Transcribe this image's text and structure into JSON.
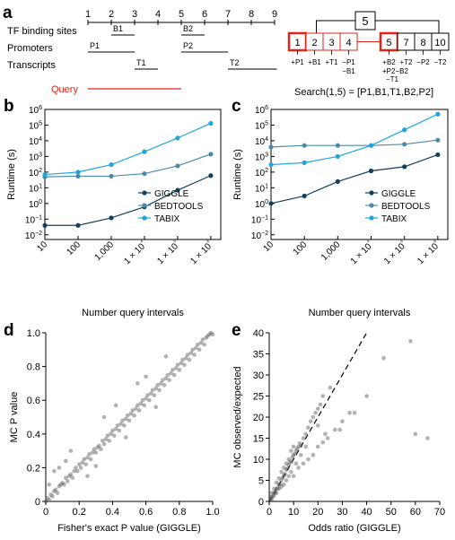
{
  "panel_a": {
    "panel_label": "a",
    "ruler": [
      "1",
      "2",
      "3",
      "4",
      "5",
      "6",
      "7",
      "8",
      "9"
    ],
    "tracks": [
      {
        "label": "TF binding sites",
        "intervals": [
          {
            "name": "B1",
            "start": 2,
            "end": 3
          },
          {
            "name": "B2",
            "start": 5,
            "end": 6
          }
        ]
      },
      {
        "label": "Promoters",
        "intervals": [
          {
            "name": "P1",
            "start": 1,
            "end": 3
          },
          {
            "name": "P2",
            "start": 5,
            "end": 7
          }
        ]
      },
      {
        "label": "Transcripts",
        "intervals": [
          {
            "name": "T1",
            "start": 3,
            "end": 4
          },
          {
            "name": "T2",
            "start": 7,
            "end": 9.1
          }
        ]
      }
    ],
    "query_label": "Query",
    "query_interval": {
      "start": 1,
      "end": 5
    },
    "index_root": "5",
    "index_left": [
      "1",
      "2",
      "3",
      "4"
    ],
    "index_right": [
      "5",
      "7",
      "8",
      "10"
    ],
    "annotations_left": [
      "+P1",
      "+B1",
      "+T1",
      "−P1"
    ],
    "annotations_left_extra": "−B1",
    "annotations_right_row1": [
      "+B2",
      "+T2",
      "−P2",
      "−T2"
    ],
    "annotations_right_row2": "+P2−B2",
    "annotations_right_row3": "−T1",
    "search_text": "Search(1,5) = [P1,B1,T1,B2,P2]",
    "colors": {
      "highlight": "#e2231a",
      "query": "#e2231a",
      "ruler": "#000000"
    }
  },
  "panel_b": {
    "panel_label": "b",
    "chart_data": {
      "type": "line",
      "ylabel": "Runtime (s)",
      "xlabel": "Number query intervals",
      "scale": "log-log",
      "x": [
        10,
        100,
        1000,
        10000,
        100000,
        1000000
      ],
      "x_tick_labels": [
        "10",
        "100",
        "1,000",
        "1 × 10⁴",
        "1 × 10⁵",
        "1 × 10⁶"
      ],
      "y_tick_labels": [
        "10⁻²",
        "10⁻¹",
        "10⁰",
        "10¹",
        "10²",
        "10³",
        "10⁴",
        "10⁵",
        "10⁶"
      ],
      "ylim": [
        0.005,
        1000000
      ],
      "legend_position": "bottom-right",
      "series": [
        {
          "name": "GIGGLE",
          "color": "#13405b",
          "values": [
            0.04,
            0.04,
            0.12,
            0.6,
            7,
            60
          ]
        },
        {
          "name": "BEDTOOLS",
          "color": "#4c8aa8",
          "values": [
            50,
            55,
            55,
            80,
            250,
            1400
          ]
        },
        {
          "name": "TABIX",
          "color": "#1fa5dc",
          "values": [
            70,
            100,
            300,
            2000,
            15000,
            130000
          ]
        }
      ]
    }
  },
  "panel_c": {
    "panel_label": "c",
    "chart_data": {
      "type": "line",
      "ylabel": "Runtime (s)",
      "xlabel": "Number query intervals",
      "scale": "log-log",
      "x": [
        10,
        100,
        1000,
        10000,
        100000,
        1000000
      ],
      "x_tick_labels": [
        "10",
        "100",
        "1,000",
        "1 × 10⁴",
        "1 × 10⁵",
        "1 × 10⁶"
      ],
      "y_tick_labels": [
        "10⁻²",
        "10⁻¹",
        "10⁰",
        "10¹",
        "10²",
        "10³",
        "10⁴",
        "10⁵",
        "10⁶"
      ],
      "ylim": [
        0.005,
        1000000
      ],
      "legend_position": "bottom-right",
      "series": [
        {
          "name": "GIGGLE",
          "color": "#13405b",
          "values": [
            1,
            3,
            25,
            120,
            220,
            1300
          ]
        },
        {
          "name": "BEDTOOLS",
          "color": "#4c8aa8",
          "values": [
            4000,
            5000,
            5000,
            5000,
            6000,
            11000
          ]
        },
        {
          "name": "TABIX",
          "color": "#1fa5dc",
          "values": [
            300,
            400,
            1000,
            5000,
            50000,
            500000
          ]
        }
      ]
    }
  },
  "panel_d": {
    "panel_label": "d",
    "chart_data": {
      "type": "scatter",
      "xlabel": "Fisher's exact P value (GIGGLE)",
      "ylabel": "MC P value",
      "xlim": [
        0,
        1
      ],
      "ylim": [
        0,
        1
      ],
      "x_ticks": [
        "0",
        "0.2",
        "0.4",
        "0.6",
        "0.8",
        "1.0"
      ],
      "y_ticks": [
        "0",
        "0.2",
        "0.4",
        "0.6",
        "0.8",
        "1.0"
      ],
      "point_color": "#555555",
      "points": [
        [
          0.0,
          0.0
        ],
        [
          0.01,
          0.02
        ],
        [
          0.02,
          0.01
        ],
        [
          0.03,
          0.04
        ],
        [
          0.04,
          0.03
        ],
        [
          0.05,
          0.06
        ],
        [
          0.06,
          0.07
        ],
        [
          0.07,
          0.05
        ],
        [
          0.08,
          0.09
        ],
        [
          0.09,
          0.1
        ],
        [
          0.1,
          0.11
        ],
        [
          0.11,
          0.1
        ],
        [
          0.12,
          0.14
        ],
        [
          0.13,
          0.12
        ],
        [
          0.14,
          0.15
        ],
        [
          0.15,
          0.16
        ],
        [
          0.16,
          0.14
        ],
        [
          0.17,
          0.18
        ],
        [
          0.18,
          0.2
        ],
        [
          0.19,
          0.18
        ],
        [
          0.2,
          0.22
        ],
        [
          0.21,
          0.2
        ],
        [
          0.22,
          0.23
        ],
        [
          0.23,
          0.25
        ],
        [
          0.24,
          0.22
        ],
        [
          0.25,
          0.26
        ],
        [
          0.26,
          0.28
        ],
        [
          0.27,
          0.25
        ],
        [
          0.28,
          0.29
        ],
        [
          0.29,
          0.31
        ],
        [
          0.3,
          0.29
        ],
        [
          0.31,
          0.32
        ],
        [
          0.32,
          0.33
        ],
        [
          0.33,
          0.31
        ],
        [
          0.34,
          0.36
        ],
        [
          0.35,
          0.34
        ],
        [
          0.36,
          0.37
        ],
        [
          0.37,
          0.39
        ],
        [
          0.38,
          0.36
        ],
        [
          0.39,
          0.4
        ],
        [
          0.4,
          0.42
        ],
        [
          0.41,
          0.39
        ],
        [
          0.42,
          0.43
        ],
        [
          0.43,
          0.45
        ],
        [
          0.44,
          0.42
        ],
        [
          0.45,
          0.46
        ],
        [
          0.46,
          0.48
        ],
        [
          0.47,
          0.45
        ],
        [
          0.48,
          0.49
        ],
        [
          0.49,
          0.51
        ],
        [
          0.5,
          0.48
        ],
        [
          0.51,
          0.52
        ],
        [
          0.52,
          0.54
        ],
        [
          0.53,
          0.51
        ],
        [
          0.54,
          0.55
        ],
        [
          0.55,
          0.57
        ],
        [
          0.56,
          0.54
        ],
        [
          0.57,
          0.58
        ],
        [
          0.58,
          0.6
        ],
        [
          0.59,
          0.57
        ],
        [
          0.6,
          0.61
        ],
        [
          0.61,
          0.63
        ],
        [
          0.62,
          0.6
        ],
        [
          0.63,
          0.64
        ],
        [
          0.64,
          0.66
        ],
        [
          0.65,
          0.63
        ],
        [
          0.66,
          0.67
        ],
        [
          0.67,
          0.69
        ],
        [
          0.68,
          0.66
        ],
        [
          0.69,
          0.7
        ],
        [
          0.7,
          0.72
        ],
        [
          0.71,
          0.69
        ],
        [
          0.72,
          0.73
        ],
        [
          0.73,
          0.75
        ],
        [
          0.74,
          0.72
        ],
        [
          0.75,
          0.76
        ],
        [
          0.76,
          0.78
        ],
        [
          0.77,
          0.75
        ],
        [
          0.78,
          0.79
        ],
        [
          0.79,
          0.81
        ],
        [
          0.8,
          0.78
        ],
        [
          0.81,
          0.82
        ],
        [
          0.82,
          0.84
        ],
        [
          0.83,
          0.81
        ],
        [
          0.84,
          0.85
        ],
        [
          0.85,
          0.87
        ],
        [
          0.86,
          0.84
        ],
        [
          0.87,
          0.88
        ],
        [
          0.88,
          0.9
        ],
        [
          0.89,
          0.87
        ],
        [
          0.9,
          0.91
        ],
        [
          0.91,
          0.93
        ],
        [
          0.92,
          0.9
        ],
        [
          0.93,
          0.94
        ],
        [
          0.94,
          0.96
        ],
        [
          0.95,
          0.93
        ],
        [
          0.96,
          0.97
        ],
        [
          0.97,
          0.98
        ],
        [
          0.98,
          0.99
        ],
        [
          0.99,
          1.0
        ],
        [
          1.0,
          0.99
        ],
        [
          0.08,
          0.2
        ],
        [
          0.05,
          0.18
        ],
        [
          0.15,
          0.3
        ],
        [
          0.35,
          0.5
        ],
        [
          0.42,
          0.57
        ],
        [
          0.55,
          0.7
        ],
        [
          0.6,
          0.74
        ],
        [
          0.72,
          0.86
        ],
        [
          0.25,
          0.15
        ],
        [
          0.48,
          0.38
        ],
        [
          0.66,
          0.56
        ],
        [
          0.3,
          0.21
        ],
        [
          0.12,
          0.24
        ],
        [
          0.02,
          0.1
        ]
      ]
    }
  },
  "panel_e": {
    "panel_label": "e",
    "chart_data": {
      "type": "scatter",
      "xlabel": "Odds ratio (GIGGLE)",
      "ylabel": "MC observed/expected",
      "xlim": [
        0,
        70
      ],
      "ylim": [
        0,
        40
      ],
      "x_ticks": [
        "0",
        "10",
        "20",
        "30",
        "40",
        "50",
        "60",
        "70"
      ],
      "y_ticks": [
        "0",
        "5",
        "10",
        "15",
        "20",
        "25",
        "30",
        "35",
        "40"
      ],
      "reference_line": "y = x",
      "point_color": "#555555",
      "points": [
        [
          0.5,
          0.5
        ],
        [
          1,
          1
        ],
        [
          1.5,
          1.2
        ],
        [
          2,
          2
        ],
        [
          2.5,
          2.1
        ],
        [
          3,
          3
        ],
        [
          3.5,
          3.2
        ],
        [
          4,
          4
        ],
        [
          4.5,
          4.1
        ],
        [
          5,
          5
        ],
        [
          5.5,
          5.6
        ],
        [
          6,
          6.2
        ],
        [
          6.5,
          6.5
        ],
        [
          7,
          7.5
        ],
        [
          7.5,
          7.8
        ],
        [
          8,
          8.6
        ],
        [
          8.5,
          9.2
        ],
        [
          9,
          9.5
        ],
        [
          9.5,
          10.5
        ],
        [
          10,
          11
        ],
        [
          10.5,
          11.3
        ],
        [
          11,
          12
        ],
        [
          11.5,
          12.5
        ],
        [
          12,
          13
        ],
        [
          12.5,
          13.8
        ],
        [
          13,
          13.2
        ],
        [
          14,
          15
        ],
        [
          15,
          16
        ],
        [
          16,
          17.5
        ],
        [
          17,
          19
        ],
        [
          18,
          20
        ],
        [
          19,
          21
        ],
        [
          20,
          22
        ],
        [
          21,
          23
        ],
        [
          22,
          25
        ],
        [
          25,
          27
        ],
        [
          10,
          6
        ],
        [
          12,
          8
        ],
        [
          14,
          9
        ],
        [
          16,
          10
        ],
        [
          18,
          11
        ],
        [
          20,
          13
        ],
        [
          22,
          14
        ],
        [
          24,
          15
        ],
        [
          27,
          17
        ],
        [
          30,
          19
        ],
        [
          33,
          21
        ],
        [
          60,
          16
        ],
        [
          65,
          15
        ],
        [
          58,
          38
        ],
        [
          47,
          34
        ],
        [
          40,
          25
        ],
        [
          35,
          21
        ],
        [
          29,
          17
        ],
        [
          20,
          18
        ],
        [
          23,
          16
        ],
        [
          15,
          13
        ],
        [
          13,
          11
        ],
        [
          11,
          9
        ],
        [
          9,
          7
        ],
        [
          8,
          6
        ],
        [
          7,
          5
        ],
        [
          6,
          4
        ],
        [
          5,
          3.5
        ],
        [
          4,
          3
        ],
        [
          3,
          2
        ],
        [
          2,
          1.5
        ],
        [
          1,
          0.5
        ],
        [
          0.5,
          1
        ],
        [
          1,
          2
        ],
        [
          2,
          3
        ],
        [
          3,
          4.5
        ],
        [
          4,
          5.5
        ],
        [
          5,
          7
        ],
        [
          6,
          8
        ],
        [
          7,
          9
        ],
        [
          8,
          10
        ],
        [
          9,
          12
        ],
        [
          10,
          13
        ]
      ]
    }
  }
}
